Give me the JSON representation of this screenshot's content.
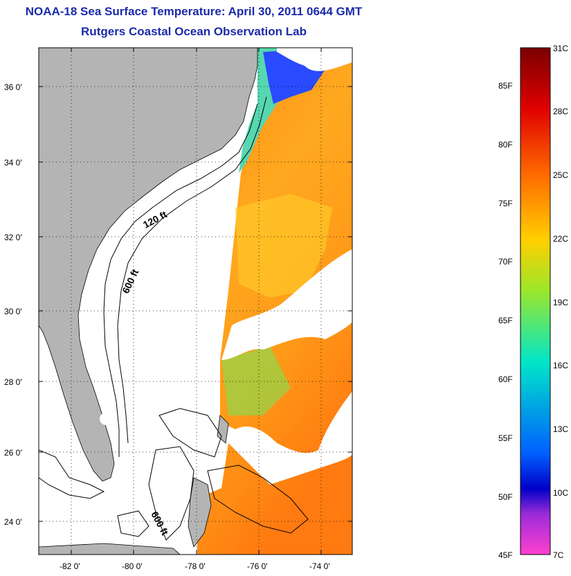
{
  "header": {
    "title": "NOAA-18 Sea Surface Temperature:  April 30, 2011 0644 GMT",
    "subtitle": "Rutgers Coastal Ocean Observation Lab"
  },
  "map": {
    "lat_labels": [
      "36 0'",
      "34 0'",
      "32 0'",
      "30 0'",
      "28 0'",
      "26 0'",
      "24 0'"
    ],
    "lon_labels": [
      "-82 0'",
      "-80 0'",
      "-78 0'",
      "-76 0'",
      "-74 0'"
    ],
    "contour_labels": [
      "120 ft",
      "600 ft",
      "600 ft"
    ],
    "land_color": "#b4b4b4",
    "cloud_color": "#ffffff"
  },
  "colorbar": {
    "fahrenheit_labels": [
      "85F",
      "80F",
      "75F",
      "70F",
      "65F",
      "60F",
      "55F",
      "50F",
      "45F"
    ],
    "celsius_labels": [
      "31C",
      "28C",
      "25C",
      "22C",
      "19C",
      "16C",
      "13C",
      "10C",
      "7C"
    ],
    "colors": [
      "#7a0000",
      "#e00000",
      "#ff6a00",
      "#ffd000",
      "#9be62a",
      "#00e6c8",
      "#0060ff",
      "#0000c8",
      "#9a2bd8",
      "#ff40d0"
    ]
  }
}
